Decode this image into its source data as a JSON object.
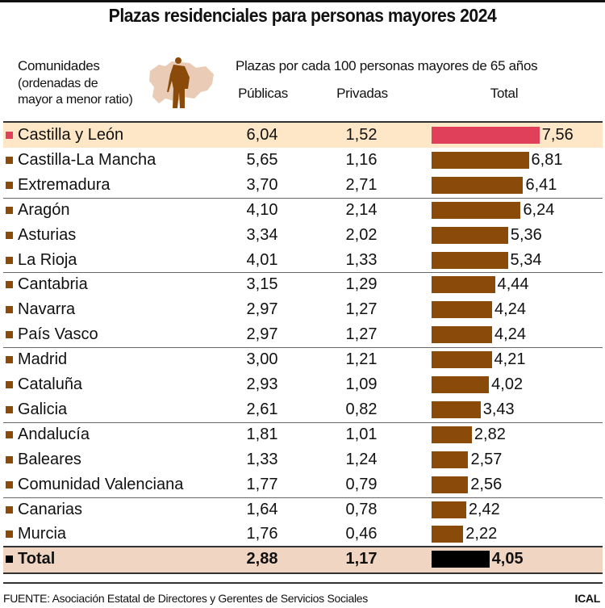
{
  "title": "Plazas residenciales para personas mayores 2024",
  "header": {
    "communities_l1": "Comunidades",
    "communities_l2": "(ordenadas de",
    "communities_l3": "mayor a menor ratio)",
    "measure": "Plazas por cada 100 personas mayores de 65 años",
    "col_public": "Públicas",
    "col_private": "Privadas",
    "col_total": "Total"
  },
  "colors": {
    "highlight_bar": "#e0405a",
    "bar": "#8a4a0a",
    "total_bar": "#000000",
    "highlight_row": "#fde7c6",
    "total_row": "#f1d5c3"
  },
  "chart_data": {
    "type": "table",
    "columns": [
      "Comunidades",
      "Públicas",
      "Privadas",
      "Total"
    ],
    "rows": [
      {
        "name": "Castilla y León",
        "public": "6,04",
        "private": "1,52",
        "total": "7,56",
        "value": 7.56,
        "highlight": true
      },
      {
        "name": "Castilla-La Mancha",
        "public": "5,65",
        "private": "1,16",
        "total": "6,81",
        "value": 6.81
      },
      {
        "name": "Extremadura",
        "public": "3,70",
        "private": "2,71",
        "total": "6,41",
        "value": 6.41
      },
      {
        "name": "Aragón",
        "public": "4,10",
        "private": "2,14",
        "total": "6,24",
        "value": 6.24
      },
      {
        "name": "Asturias",
        "public": "3,34",
        "private": "2,02",
        "total": "5,36",
        "value": 5.36
      },
      {
        "name": "La Rioja",
        "public": "4,01",
        "private": "1,33",
        "total": "5,34",
        "value": 5.34
      },
      {
        "name": "Cantabria",
        "public": "3,15",
        "private": "1,29",
        "total": "4,44",
        "value": 4.44
      },
      {
        "name": "Navarra",
        "public": "2,97",
        "private": "1,27",
        "total": "4,24",
        "value": 4.24
      },
      {
        "name": "País Vasco",
        "public": "2,97",
        "private": "1,27",
        "total": "4,24",
        "value": 4.24
      },
      {
        "name": "Madrid",
        "public": "3,00",
        "private": "1,21",
        "total": "4,21",
        "value": 4.21
      },
      {
        "name": "Cataluña",
        "public": "2,93",
        "private": "1,09",
        "total": "4,02",
        "value": 4.02
      },
      {
        "name": "Galicia",
        "public": "2,61",
        "private": "0,82",
        "total": "3,43",
        "value": 3.43
      },
      {
        "name": "Andalucía",
        "public": "1,81",
        "private": "1,01",
        "total": "2,82",
        "value": 2.82
      },
      {
        "name": "Baleares",
        "public": "1,33",
        "private": "1,24",
        "total": "2,57",
        "value": 2.57
      },
      {
        "name": "Comunidad Valenciana",
        "public": "1,77",
        "private": "0,79",
        "total": "2,56",
        "value": 2.56
      },
      {
        "name": "Canarias",
        "public": "1,64",
        "private": "0,78",
        "total": "2,42",
        "value": 2.42
      },
      {
        "name": "Murcia",
        "public": "1,76",
        "private": "0,46",
        "total": "2,22",
        "value": 2.22
      }
    ],
    "total": {
      "name": "Total",
      "public": "2,88",
      "private": "1,17",
      "total": "4,05",
      "value": 4.05
    }
  },
  "footer": {
    "source": "FUENTE: Asociación Estatal de Directores y Gerentes de Servicios Sociales",
    "brand": "ICAL"
  }
}
